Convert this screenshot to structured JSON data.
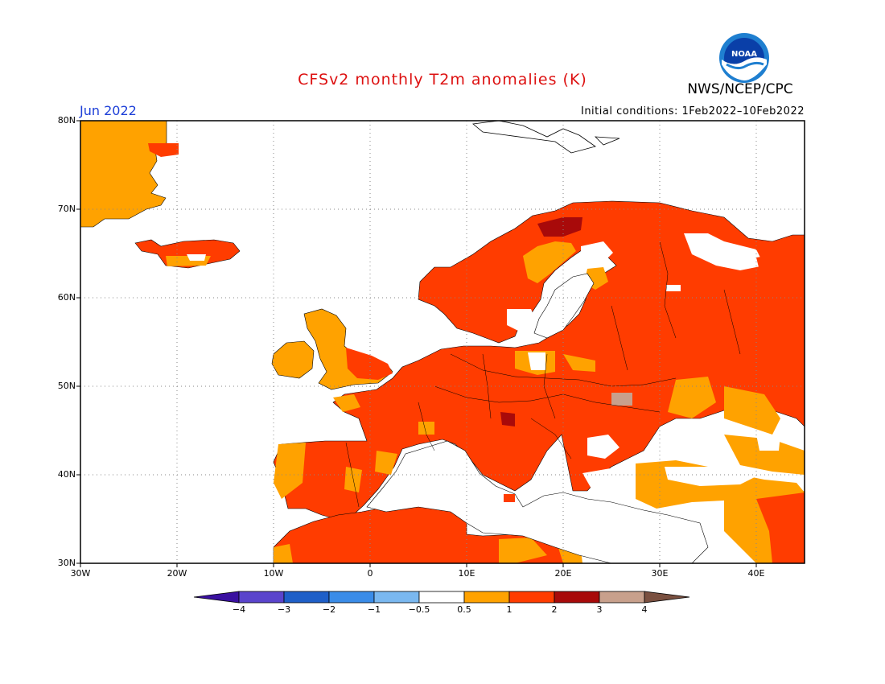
{
  "header": {
    "title": "CFSv2 monthly T2m anomalies (K)",
    "agency": "NWS/NCEP/CPC",
    "valid_month": "Jun 2022",
    "initial_conditions": "Initial conditions: 1Feb2022–10Feb2022",
    "logo_text": "NOAA"
  },
  "map": {
    "region": "Europe",
    "lon_range": [
      -30,
      45
    ],
    "lat_range": [
      30,
      80
    ],
    "lat_ticks": [
      {
        "value": 80,
        "label": "80N"
      },
      {
        "value": 70,
        "label": "70N"
      },
      {
        "value": 60,
        "label": "60N"
      },
      {
        "value": 50,
        "label": "50N"
      },
      {
        "value": 40,
        "label": "40N"
      },
      {
        "value": 30,
        "label": "30N"
      }
    ],
    "lon_ticks": [
      {
        "value": -30,
        "label": "30W"
      },
      {
        "value": -20,
        "label": "20W"
      },
      {
        "value": -10,
        "label": "10W"
      },
      {
        "value": 0,
        "label": "0"
      },
      {
        "value": 10,
        "label": "10E"
      },
      {
        "value": 20,
        "label": "20E"
      },
      {
        "value": 30,
        "label": "30E"
      },
      {
        "value": 40,
        "label": "40E"
      }
    ],
    "grid": "dotted",
    "colors": {
      "ocean": "#ffffff",
      "land_neutral": "#ffffff",
      "coast": "#000000"
    }
  },
  "colorbar": {
    "bins": [
      {
        "range": "<-4",
        "color": "#3a10a0"
      },
      {
        "range": "-4 to -3",
        "color": "#5a44cc"
      },
      {
        "range": "-3 to -2",
        "color": "#1e5fc8"
      },
      {
        "range": "-2 to -1",
        "color": "#3a8ce8"
      },
      {
        "range": "-1 to -0.5",
        "color": "#7ab8f0"
      },
      {
        "range": "-0.5 to 0.5",
        "color": "#ffffff"
      },
      {
        "range": "0.5 to 1",
        "color": "#ffa200"
      },
      {
        "range": "1 to 2",
        "color": "#ff3c00"
      },
      {
        "range": "2 to 3",
        "color": "#a80a0a"
      },
      {
        "range": "3 to 4",
        "color": "#c8a08c"
      },
      {
        "range": ">4",
        "color": "#7a5040"
      }
    ],
    "tick_labels": [
      "−4",
      "−3",
      "−2",
      "−1",
      "−0.5",
      "0.5",
      "1",
      "2",
      "3",
      "4"
    ]
  }
}
